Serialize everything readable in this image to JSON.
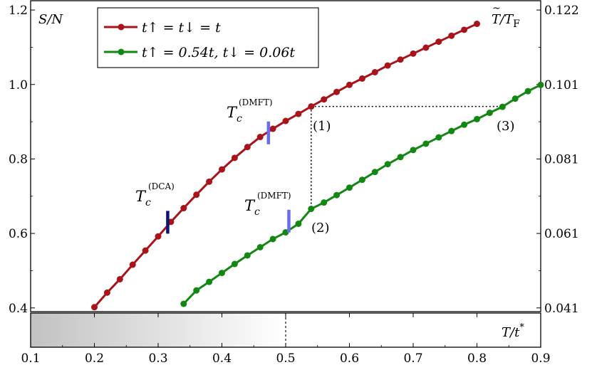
{
  "chart_data": {
    "type": "line",
    "xlabel": "T/t*",
    "ylabel": "S/N",
    "y2label": "T̃/T_F",
    "xlim": [
      0.1,
      0.9
    ],
    "ylim": [
      0.39,
      1.225
    ],
    "x_ticks": [
      "0.1",
      "0.2",
      "0.3",
      "0.4",
      "0.5",
      "0.6",
      "0.7",
      "0.8",
      "0.9"
    ],
    "y_ticks": [
      "0.4",
      "0.6",
      "0.8",
      "1.0",
      "1.2"
    ],
    "y2_ticks": [
      "0.041",
      "0.061",
      "0.081",
      "0.101",
      "0.122"
    ],
    "colors": {
      "red": "#a8141a",
      "green": "#128812",
      "light_blue": "#6a6cf0",
      "dark_blue": "#0c1572"
    },
    "series": [
      {
        "name": "t↑ = t↓ = t",
        "color": "#a8141a",
        "x": [
          0.2,
          0.22,
          0.24,
          0.26,
          0.28,
          0.3,
          0.32,
          0.34,
          0.36,
          0.38,
          0.4,
          0.42,
          0.44,
          0.46,
          0.48,
          0.5,
          0.52,
          0.54,
          0.56,
          0.58,
          0.6,
          0.62,
          0.64,
          0.66,
          0.68,
          0.7,
          0.72,
          0.74,
          0.76,
          0.78,
          0.8
        ],
        "y": [
          0.402,
          0.441,
          0.477,
          0.516,
          0.554,
          0.592,
          0.631,
          0.668,
          0.704,
          0.739,
          0.772,
          0.803,
          0.832,
          0.859,
          0.881,
          0.902,
          0.921,
          0.941,
          0.96,
          0.98,
          0.999,
          1.016,
          1.033,
          1.051,
          1.067,
          1.083,
          1.099,
          1.115,
          1.131,
          1.147,
          1.163
        ]
      },
      {
        "name": "t↑ = 0.54t, t↓ = 0.06t",
        "color": "#128812",
        "x": [
          0.34,
          0.36,
          0.38,
          0.4,
          0.42,
          0.44,
          0.46,
          0.48,
          0.5,
          0.52,
          0.54,
          0.56,
          0.58,
          0.6,
          0.62,
          0.64,
          0.66,
          0.68,
          0.7,
          0.72,
          0.74,
          0.76,
          0.78,
          0.8,
          0.82,
          0.84,
          0.86,
          0.88,
          0.9
        ],
        "y": [
          0.411,
          0.447,
          0.47,
          0.494,
          0.518,
          0.541,
          0.563,
          0.585,
          0.603,
          0.626,
          0.666,
          0.683,
          0.703,
          0.723,
          0.744,
          0.765,
          0.786,
          0.805,
          0.824,
          0.841,
          0.858,
          0.875,
          0.892,
          0.907,
          0.924,
          0.94,
          0.962,
          0.982,
          0.999
        ]
      }
    ],
    "markers": [
      {
        "label": "Tc(DCA)",
        "x": 0.315,
        "y": 0.63,
        "color": "#0c1572"
      },
      {
        "label": "Tc(DMFT)",
        "x": 0.473,
        "y": 0.87,
        "color": "#6a6cf0"
      },
      {
        "label": "Tc(DMFT)",
        "x": 0.505,
        "y": 0.633,
        "color": "#6a6cf0"
      }
    ],
    "points": [
      {
        "label": "(1)",
        "x": 0.54,
        "y": 0.941
      },
      {
        "label": "(2)",
        "x": 0.54,
        "y": 0.666
      },
      {
        "label": "(3)",
        "x": 0.84,
        "y": 0.941
      }
    ],
    "inset": {
      "xlabel": "T/t*",
      "marker_x": 0.5,
      "gradient_from": 0.1,
      "gradient_to": 0.5
    },
    "legend": "top-left"
  },
  "text": {
    "y_label": "S/N",
    "y2_label_main": "T",
    "y2_label_rest": "/T",
    "y2_label_sub": "F",
    "x_label_main": "T/t",
    "x_label_sup": "*",
    "tc_main": "T",
    "tc_sub": "c",
    "tc_dmft": "(DMFT)",
    "tc_dca": "(DCA)",
    "legend_1": "t↑ = t↓ = t",
    "legend_2": "t↑ = 0.54t, t↓ = 0.06t",
    "p1": "(1)",
    "p2": "(2)",
    "p3": "(3)"
  }
}
